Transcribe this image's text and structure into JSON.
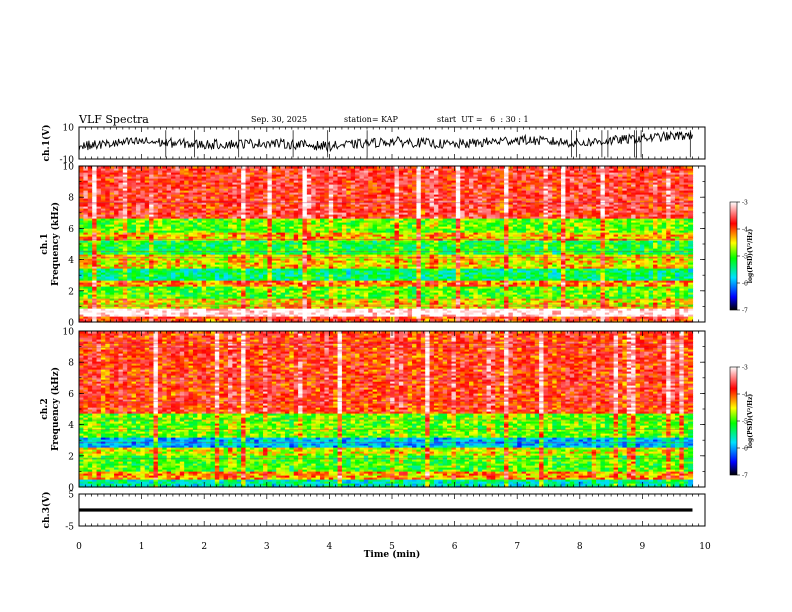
{
  "header": {
    "title": "VLF Spectra",
    "date": "Sep. 30, 2025",
    "station": "station= KAP",
    "start_ut": "start  UT =   6  : 30 : 1"
  },
  "chart_data": [
    {
      "type": "line",
      "panel": "ch1-voltage",
      "ylabel": "ch.1(V)",
      "ylim": [
        -10,
        10
      ],
      "yticks": [
        "-10",
        "10"
      ],
      "x_range_min": [
        0,
        9.8
      ],
      "level_range_v": [
        -6,
        7
      ],
      "series": [
        {
          "values_min": [
            0,
            1,
            2,
            3,
            4,
            5,
            6,
            7,
            8,
            9,
            9.8
          ],
          "approx_v": [
            -2,
            1,
            -1,
            0,
            -2,
            1,
            -1,
            2,
            0,
            3,
            5
          ]
        }
      ],
      "color": "#000000"
    },
    {
      "type": "heatmap",
      "panel": "ch1-spectrogram",
      "ylabel_top": "ch.1",
      "ylabel": "Frequency  (kHz)",
      "ylim": [
        0,
        10
      ],
      "yticks": [
        "0",
        "2",
        "4",
        "6",
        "8",
        "10"
      ],
      "x_range_min": [
        0,
        9.8
      ],
      "bands": [
        {
          "f": [
            0.0,
            0.4
          ],
          "level": -4.0
        },
        {
          "f": [
            0.4,
            0.9
          ],
          "level": -3.0
        },
        {
          "f": [
            0.9,
            1.6
          ],
          "level": -4.5
        },
        {
          "f": [
            1.6,
            2.3
          ],
          "level": -5.0
        },
        {
          "f": [
            2.3,
            2.7
          ],
          "level": -4.2
        },
        {
          "f": [
            2.7,
            3.4
          ],
          "level": -5.4
        },
        {
          "f": [
            3.4,
            4.3
          ],
          "level": -4.5
        },
        {
          "f": [
            4.3,
            5.2
          ],
          "level": -5.2
        },
        {
          "f": [
            5.2,
            5.8
          ],
          "level": -4.4
        },
        {
          "f": [
            5.8,
            6.7
          ],
          "level": -4.9
        },
        {
          "f": [
            6.7,
            10.0
          ],
          "level": -3.8
        }
      ],
      "colorbar": {
        "label": "log(PSD)(V²/Hz)",
        "range": [
          -7,
          -3
        ],
        "ticks": [
          "-3",
          "-4",
          "-5",
          "-6",
          "-7"
        ]
      }
    },
    {
      "type": "heatmap",
      "panel": "ch2-spectrogram",
      "ylabel_top": "ch.2",
      "ylabel": "Frequency  (kHz)",
      "ylim": [
        0,
        10
      ],
      "yticks": [
        "0",
        "2",
        "4",
        "6",
        "8",
        "10"
      ],
      "x_range_min": [
        0,
        9.8
      ],
      "bands": [
        {
          "f": [
            0.0,
            0.5
          ],
          "level": -5.6
        },
        {
          "f": [
            0.5,
            1.0
          ],
          "level": -4.3
        },
        {
          "f": [
            1.0,
            2.0
          ],
          "level": -5.0
        },
        {
          "f": [
            2.0,
            2.6
          ],
          "level": -4.6
        },
        {
          "f": [
            2.6,
            3.2
          ],
          "level": -5.9
        },
        {
          "f": [
            3.2,
            4.8
          ],
          "level": -4.9
        },
        {
          "f": [
            4.8,
            10.0
          ],
          "level": -3.9
        }
      ],
      "colorbar": {
        "label": "log(PSD)(V²/Hz)",
        "range": [
          -7,
          -3
        ],
        "ticks": [
          "-3",
          "-4",
          "-5",
          "-6",
          "-7"
        ]
      }
    },
    {
      "type": "line",
      "panel": "ch3-voltage",
      "ylabel": "ch.3(V)",
      "ylim": [
        -5,
        5
      ],
      "yticks": [
        "-5",
        "5"
      ],
      "x_range_min": [
        0,
        9.8
      ],
      "band_v": [
        -0.5,
        0.5
      ],
      "color": "#000000"
    }
  ],
  "xaxis": {
    "label": "Time  (min)",
    "range": [
      0,
      10
    ],
    "ticks": [
      "0",
      "1",
      "2",
      "3",
      "4",
      "5",
      "6",
      "7",
      "8",
      "9",
      "10"
    ]
  },
  "colors": {
    "colormap": [
      "#000000",
      "#0000ff",
      "#00e0ff",
      "#00ff00",
      "#ffff00",
      "#ff0000",
      "#ffffff"
    ]
  }
}
